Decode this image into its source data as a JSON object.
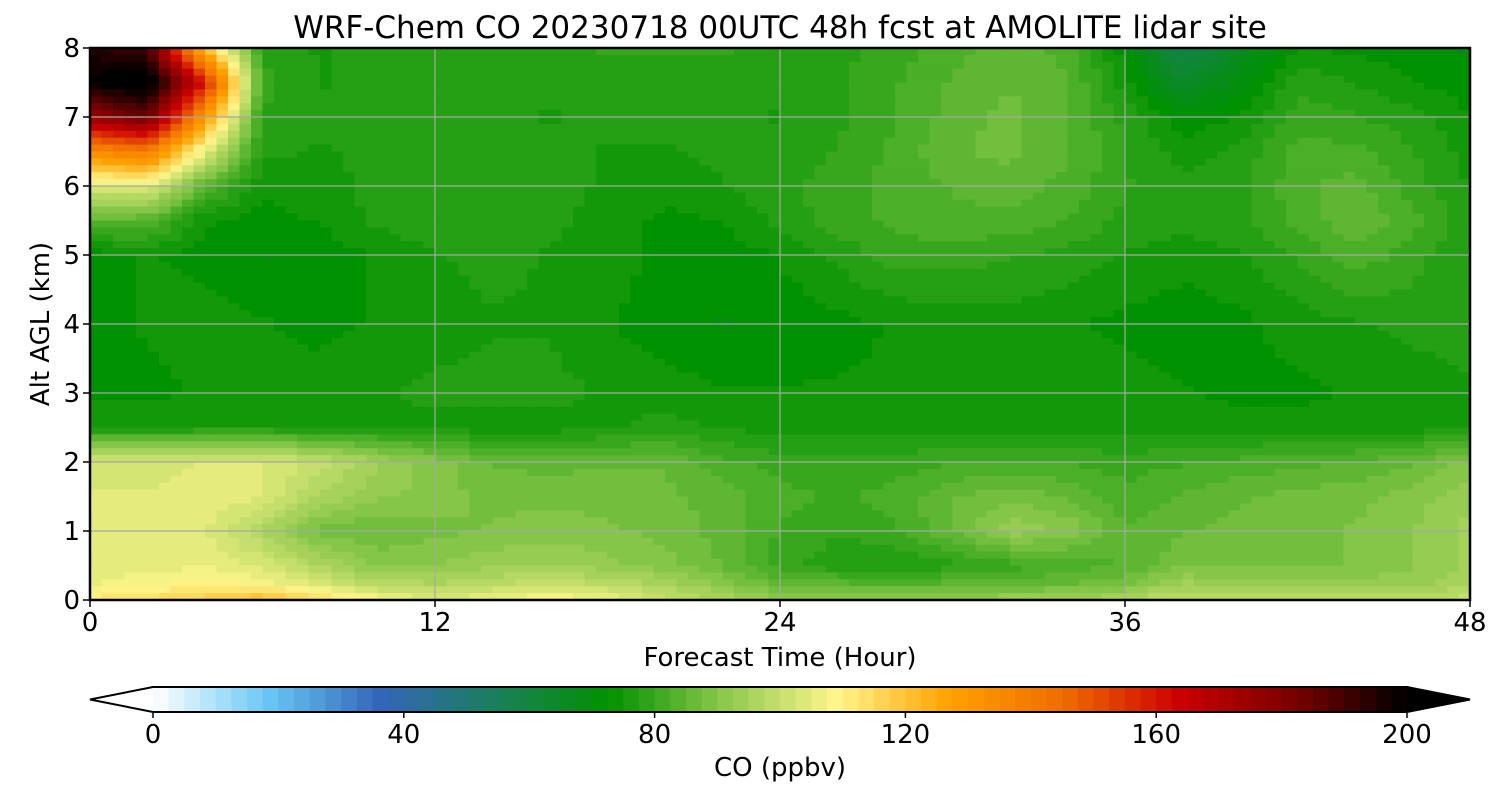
{
  "chart_data": {
    "type": "heatmap",
    "title": "WRF-Chem CO  20230718 00UTC 48h fcst at AMOLITE lidar site",
    "xlabel": "Forecast Time (Hour)",
    "ylabel": "Alt AGL (km)",
    "xlim": [
      0,
      48
    ],
    "ylim": [
      0,
      8
    ],
    "xticks": [
      0,
      12,
      24,
      36,
      48
    ],
    "yticks": [
      0,
      1,
      2,
      3,
      4,
      5,
      6,
      7,
      8
    ],
    "grid": true,
    "x": [
      0,
      2,
      4,
      6,
      8,
      10,
      12,
      14,
      16,
      18,
      20,
      22,
      24,
      26,
      28,
      30,
      32,
      34,
      36,
      38,
      40,
      42,
      44,
      46,
      48
    ],
    "y": [
      0,
      0.25,
      0.5,
      1,
      1.5,
      2,
      2.5,
      3,
      4,
      5,
      5.5,
      6,
      6.5,
      7,
      7.5,
      8
    ],
    "values": [
      [
        112,
        114,
        118,
        122,
        115,
        108,
        104,
        106,
        110,
        106,
        100,
        96,
        92,
        92,
        92,
        92,
        93,
        94,
        96,
        100,
        99,
        98,
        98,
        98,
        100
      ],
      [
        106,
        108,
        110,
        108,
        102,
        97,
        96,
        98,
        100,
        98,
        95,
        90,
        85,
        84,
        83,
        84,
        85,
        86,
        88,
        94,
        92,
        92,
        92,
        93,
        95
      ],
      [
        104,
        105,
        106,
        103,
        96,
        91,
        91,
        93,
        94,
        92,
        90,
        86,
        80,
        77,
        76,
        78,
        80,
        82,
        84,
        88,
        88,
        88,
        89,
        91,
        94
      ],
      [
        104,
        105,
        104,
        96,
        88,
        86,
        88,
        89,
        90,
        89,
        88,
        85,
        81,
        79,
        81,
        86,
        93,
        91,
        84,
        86,
        87,
        88,
        89,
        91,
        95
      ],
      [
        104,
        104,
        106,
        104,
        96,
        92,
        90,
        88,
        88,
        88,
        87,
        85,
        82,
        81,
        82,
        86,
        88,
        86,
        82,
        84,
        86,
        87,
        88,
        90,
        93
      ],
      [
        102,
        102,
        104,
        104,
        100,
        94,
        90,
        86,
        85,
        86,
        86,
        82,
        80,
        80,
        80,
        81,
        82,
        81,
        80,
        81,
        82,
        83,
        84,
        86,
        90
      ],
      [
        76,
        76,
        76,
        76,
        76,
        76,
        75,
        75,
        75,
        76,
        77,
        76,
        75,
        75,
        75,
        75,
        75,
        75,
        75,
        75,
        75,
        75,
        75,
        75,
        76
      ],
      [
        73,
        73,
        74,
        74,
        75,
        76,
        77,
        77,
        77,
        76,
        75,
        74,
        74,
        74,
        74,
        75,
        76,
        76,
        75,
        74,
        73,
        73,
        74,
        75,
        76
      ],
      [
        73,
        74,
        75,
        74,
        73,
        74,
        75,
        76,
        76,
        74,
        72,
        71,
        72,
        73,
        74,
        75,
        75,
        74,
        73,
        72,
        73,
        75,
        76,
        77,
        77
      ],
      [
        72,
        74,
        73,
        71,
        72,
        74,
        76,
        77,
        76,
        75,
        73,
        72,
        74,
        77,
        80,
        80,
        79,
        78,
        76,
        75,
        76,
        79,
        83,
        80,
        76
      ],
      [
        85,
        84,
        74,
        73,
        74,
        77,
        78,
        78,
        77,
        75,
        73,
        74,
        77,
        80,
        82,
        83,
        83,
        81,
        78,
        77,
        78,
        82,
        86,
        82,
        77
      ],
      [
        103,
        105,
        84,
        74,
        75,
        77,
        78,
        78,
        77,
        76,
        75,
        76,
        78,
        80,
        82,
        84,
        85,
        83,
        79,
        77,
        78,
        83,
        85,
        80,
        76
      ],
      [
        135,
        140,
        105,
        77,
        76,
        77,
        78,
        78,
        77,
        76,
        76,
        77,
        77,
        79,
        82,
        86,
        87,
        84,
        79,
        75,
        77,
        82,
        82,
        79,
        75
      ],
      [
        175,
        185,
        130,
        78,
        77,
        77,
        78,
        77,
        76,
        77,
        77,
        77,
        76,
        78,
        81,
        85,
        87,
        84,
        78,
        72,
        74,
        80,
        79,
        77,
        74
      ],
      [
        200,
        205,
        160,
        80,
        76,
        77,
        78,
        77,
        77,
        78,
        78,
        78,
        77,
        78,
        81,
        84,
        86,
        84,
        75,
        64,
        70,
        78,
        76,
        74,
        72
      ],
      [
        195,
        190,
        120,
        78,
        76,
        77,
        78,
        78,
        78,
        79,
        79,
        79,
        78,
        78,
        80,
        83,
        85,
        83,
        72,
        58,
        66,
        74,
        73,
        72,
        71
      ]
    ],
    "colorbar": {
      "label": "CO  (ppbv)",
      "min": 0,
      "max": 200,
      "ticks": [
        0,
        40,
        80,
        120,
        160,
        200
      ],
      "extend": "both",
      "colors": [
        "#ffffff",
        "#6ac8f5",
        "#3365b8",
        "#1a7f5a",
        "#009100",
        "#8cc84b",
        "#fff68c",
        "#ffa000",
        "#ef6c00",
        "#cc0000",
        "#7a0000",
        "#000000"
      ]
    }
  }
}
